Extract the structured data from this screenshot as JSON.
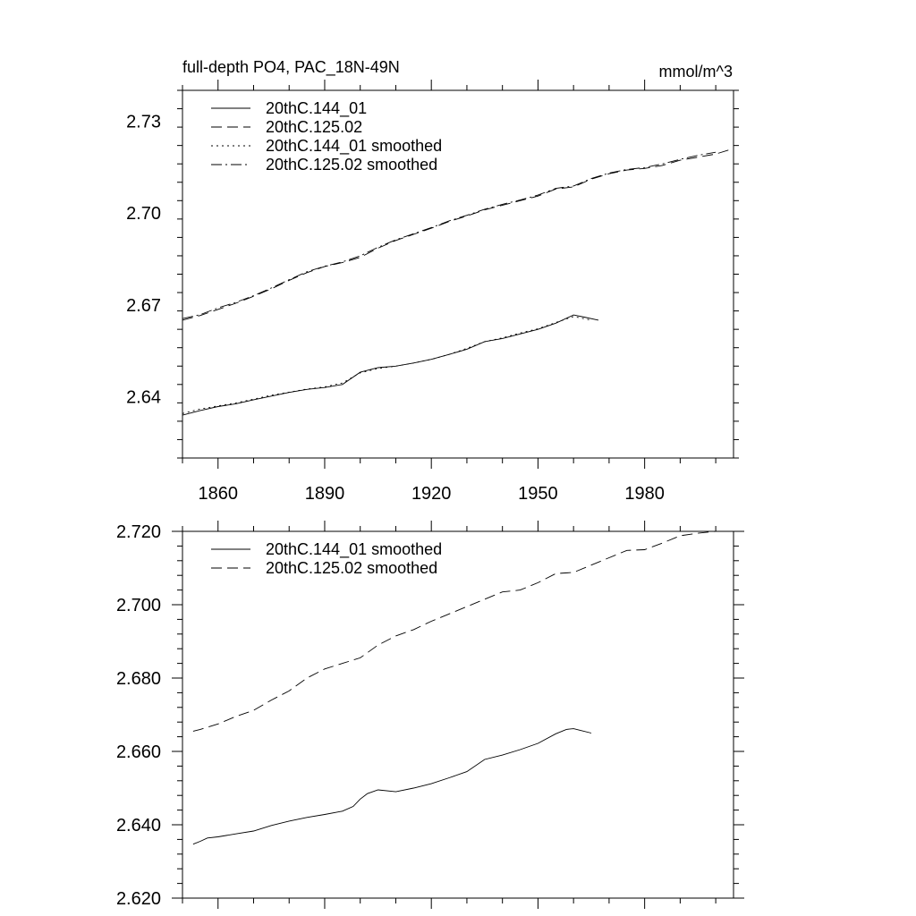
{
  "chart_data": [
    {
      "type": "line",
      "title": "full-depth PO4, PAC_18N-49N",
      "units": "mmol/m^3",
      "xlim": [
        1850,
        2005
      ],
      "ylim": [
        2.62,
        2.74
      ],
      "x_ticks": [
        1860,
        1890,
        1920,
        1950,
        1980
      ],
      "x_tick_labels": [
        "1860",
        "1890",
        "1920",
        "1950",
        "1980"
      ],
      "y_ticks": [
        2.64,
        2.67,
        2.7,
        2.73
      ],
      "y_tick_labels": [
        "2.64",
        "2.67",
        "2.70",
        "2.73"
      ],
      "legend_position": "top-left",
      "series": [
        {
          "name": "20thC.144_01",
          "style": "solid",
          "x": [
            1850,
            1855,
            1860,
            1865,
            1870,
            1875,
            1880,
            1885,
            1890,
            1895,
            1900,
            1905,
            1910,
            1915,
            1920,
            1925,
            1930,
            1935,
            1940,
            1945,
            1950,
            1955,
            1960,
            1963,
            1967
          ],
          "y": [
            2.634,
            2.6355,
            2.6368,
            2.6377,
            2.639,
            2.6402,
            2.6414,
            2.6424,
            2.643,
            2.644,
            2.648,
            2.6495,
            2.65,
            2.651,
            2.6522,
            2.6538,
            2.6555,
            2.658,
            2.659,
            2.6605,
            2.662,
            2.664,
            2.6667,
            2.666,
            2.665
          ]
        },
        {
          "name": "20thC.125.02",
          "style": "dashed",
          "x": [
            1850,
            1855,
            1860,
            1865,
            1870,
            1875,
            1880,
            1885,
            1890,
            1895,
            1900,
            1905,
            1910,
            1915,
            1920,
            1925,
            1930,
            1935,
            1940,
            1945,
            1950,
            1955,
            1960,
            1965,
            1970,
            1975,
            1980,
            1985,
            1990,
            1995,
            2000,
            2005
          ],
          "y": [
            2.665,
            2.6665,
            2.6685,
            2.6705,
            2.6728,
            2.6752,
            2.678,
            2.6805,
            2.6825,
            2.6838,
            2.6855,
            2.6885,
            2.691,
            2.693,
            2.695,
            2.6972,
            2.699,
            2.701,
            2.7025,
            2.704,
            2.7055,
            2.7078,
            2.7085,
            2.711,
            2.7128,
            2.714,
            2.7145,
            2.7155,
            2.7172,
            2.7182,
            2.7192,
            2.721
          ]
        },
        {
          "name": "20thC.144_01 smoothed",
          "style": "dotted",
          "x": [
            1850,
            1855,
            1860,
            1865,
            1870,
            1875,
            1880,
            1885,
            1890,
            1895,
            1900,
            1905,
            1910,
            1915,
            1920,
            1925,
            1930,
            1935,
            1940,
            1945,
            1950,
            1955,
            1960,
            1965
          ],
          "y": [
            2.6345,
            2.636,
            2.637,
            2.638,
            2.6392,
            2.6405,
            2.6415,
            2.6425,
            2.6432,
            2.6445,
            2.6478,
            2.6492,
            2.65,
            2.651,
            2.6522,
            2.6538,
            2.6558,
            2.658,
            2.6592,
            2.6608,
            2.6622,
            2.6642,
            2.6662,
            2.665
          ]
        },
        {
          "name": "20thC.125.02 smoothed",
          "style": "dashdot",
          "x": [
            1850,
            1855,
            1860,
            1865,
            1870,
            1875,
            1880,
            1885,
            1890,
            1895,
            1900,
            1905,
            1910,
            1915,
            1920,
            1925,
            1930,
            1935,
            1940,
            1945,
            1950,
            1955,
            1960,
            1965,
            1970,
            1975,
            1980,
            1985,
            1990,
            1995,
            2000
          ],
          "y": [
            2.6655,
            2.6668,
            2.669,
            2.6708,
            2.673,
            2.6755,
            2.6782,
            2.6808,
            2.6826,
            2.684,
            2.686,
            2.6888,
            2.6912,
            2.6932,
            2.6952,
            2.6974,
            2.6992,
            2.7012,
            2.7028,
            2.7042,
            2.7058,
            2.708,
            2.7088,
            2.7112,
            2.713,
            2.7142,
            2.7148,
            2.716,
            2.7175,
            2.7188,
            2.7198
          ]
        }
      ]
    },
    {
      "type": "line",
      "xlim": [
        1850,
        2005
      ],
      "ylim": [
        2.62,
        2.72
      ],
      "x_ticks": [
        1860,
        1890,
        1920,
        1950,
        1980
      ],
      "y_ticks": [
        2.62,
        2.64,
        2.66,
        2.68,
        2.7,
        2.72
      ],
      "y_tick_labels": [
        "2.620",
        "2.640",
        "2.660",
        "2.680",
        "2.700",
        "2.720"
      ],
      "legend_position": "top-left",
      "series": [
        {
          "name": "20thC.144_01 smoothed",
          "style": "solid",
          "x": [
            1853,
            1855,
            1857,
            1860,
            1865,
            1870,
            1875,
            1880,
            1885,
            1890,
            1895,
            1898,
            1900,
            1902,
            1905,
            1910,
            1915,
            1920,
            1925,
            1930,
            1935,
            1940,
            1945,
            1950,
            1955,
            1958,
            1960,
            1962,
            1965
          ],
          "y": [
            2.6347,
            2.6355,
            2.6364,
            2.6367,
            2.6375,
            2.6383,
            2.6398,
            2.641,
            2.642,
            2.6428,
            2.6437,
            2.645,
            2.647,
            2.6485,
            2.6495,
            2.649,
            2.65,
            2.6512,
            2.6528,
            2.6545,
            2.6578,
            2.659,
            2.6605,
            2.6622,
            2.6648,
            2.666,
            2.6662,
            2.6657,
            2.665
          ]
        },
        {
          "name": "20thC.125.02 smoothed",
          "style": "dashed",
          "x": [
            1853,
            1855,
            1860,
            1865,
            1870,
            1875,
            1880,
            1885,
            1890,
            1895,
            1900,
            1905,
            1910,
            1915,
            1920,
            1925,
            1930,
            1935,
            1940,
            1945,
            1950,
            1955,
            1960,
            1965,
            1970,
            1975,
            1980,
            1985,
            1990,
            1995,
            2000,
            2003
          ],
          "y": [
            2.6655,
            2.666,
            2.6675,
            2.6695,
            2.6712,
            2.674,
            2.6765,
            2.68,
            2.6825,
            2.684,
            2.6855,
            2.689,
            2.6915,
            2.6932,
            2.6955,
            2.6975,
            2.6995,
            2.7015,
            2.7035,
            2.704,
            2.706,
            2.7085,
            2.7088,
            2.7108,
            2.7128,
            2.7148,
            2.715,
            2.7168,
            2.7188,
            2.7195,
            2.72,
            2.72
          ]
        }
      ]
    }
  ]
}
